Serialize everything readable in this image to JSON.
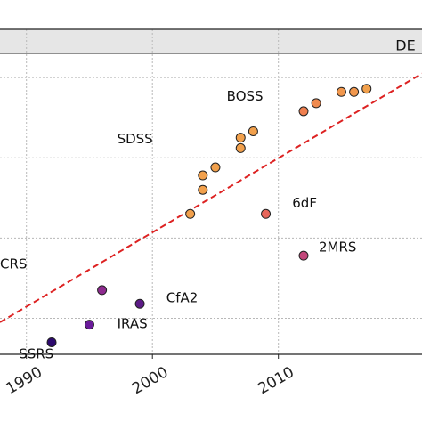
{
  "chart_data": {
    "type": "scatter",
    "title": "",
    "xlabel": "",
    "ylabel": "",
    "xlim": [
      1987.9,
      2021.4
    ],
    "ylim": [
      0.55,
      4.6
    ],
    "x_ticks": [
      1990,
      2000,
      2010
    ],
    "x_tick_labels": [
      "1990",
      "2000",
      "2010"
    ],
    "y_gridlines": [
      1.0,
      2.0,
      3.0,
      4.0
    ],
    "grid": true,
    "points": [
      {
        "x": 1992.0,
        "y": 0.7,
        "color": "#2d0a6e"
      },
      {
        "x": 1995.0,
        "y": 0.92,
        "color": "#6a1b9a"
      },
      {
        "x": 1996.0,
        "y": 1.35,
        "color": "#8e2a8f"
      },
      {
        "x": 1999.0,
        "y": 1.18,
        "color": "#5c1a86"
      },
      {
        "x": 2003.0,
        "y": 2.3,
        "color": "#f1a04c"
      },
      {
        "x": 2004.0,
        "y": 2.6,
        "color": "#f1a04c"
      },
      {
        "x": 2004.0,
        "y": 2.78,
        "color": "#f1a04c"
      },
      {
        "x": 2005.0,
        "y": 2.88,
        "color": "#f1a04c"
      },
      {
        "x": 2007.0,
        "y": 3.12,
        "color": "#f1a04c"
      },
      {
        "x": 2007.0,
        "y": 3.25,
        "color": "#f1a04c"
      },
      {
        "x": 2008.0,
        "y": 3.33,
        "color": "#f1a04c"
      },
      {
        "x": 2009.0,
        "y": 2.3,
        "color": "#e8665b"
      },
      {
        "x": 2012.0,
        "y": 1.78,
        "color": "#c2477a"
      },
      {
        "x": 2012.0,
        "y": 3.58,
        "color": "#f07f4f"
      },
      {
        "x": 2013.0,
        "y": 3.68,
        "color": "#f08a4e"
      },
      {
        "x": 2015.0,
        "y": 3.82,
        "color": "#f1974d"
      },
      {
        "x": 2016.0,
        "y": 3.82,
        "color": "#f1974d"
      },
      {
        "x": 2017.0,
        "y": 3.86,
        "color": "#f1a04c"
      }
    ],
    "trend_line": {
      "style": "dashed",
      "color": "#dd2222",
      "from": [
        1987.9,
        0.95
      ],
      "to": [
        2021.4,
        4.05
      ]
    },
    "annotations": [
      {
        "text": "SSRS",
        "x": 1989.4,
        "y": 0.5
      },
      {
        "text": "IRAS",
        "x": 1997.2,
        "y": 0.88
      },
      {
        "text": "CfA2",
        "x": 2001.1,
        "y": 1.2
      },
      {
        "text": "CRS",
        "x": 1987.9,
        "y": 1.62
      },
      {
        "text": "SDSS",
        "x": 1997.2,
        "y": 3.18
      },
      {
        "text": "BOSS",
        "x": 2005.9,
        "y": 3.71
      },
      {
        "text": "6dF",
        "x": 2011.1,
        "y": 2.38
      },
      {
        "text": "2MRS",
        "x": 2013.2,
        "y": 1.83
      },
      {
        "text": "DE",
        "x": 2019.3,
        "y": 4.34
      }
    ],
    "shaded_band": {
      "y": [
        4.3,
        4.6
      ],
      "color": "#e6e6e6",
      "label": "DE"
    }
  }
}
